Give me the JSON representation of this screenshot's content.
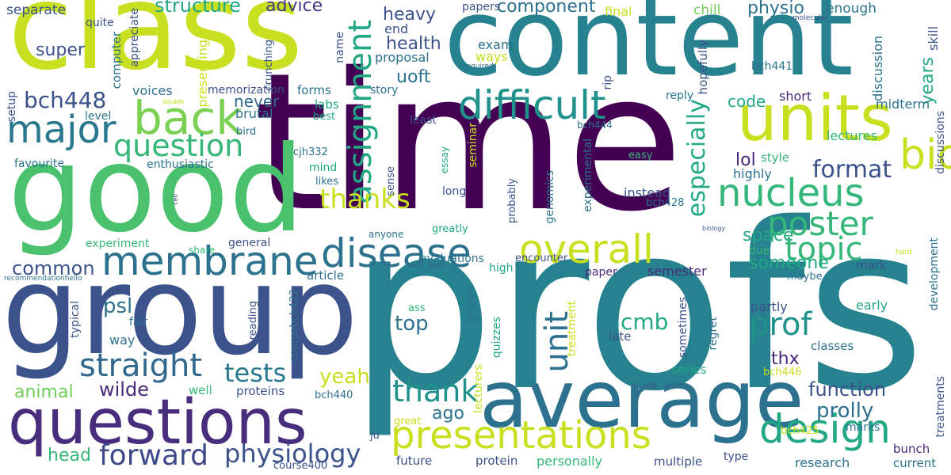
{
  "palette": {
    "dark_purple": "#440154",
    "indigo": "#482878",
    "blue": "#3e4989",
    "steel": "#31688e",
    "teal": "#26828e",
    "teal_green": "#1f9e89",
    "green": "#35b779",
    "light_green": "#6ece58",
    "lime": "#b5de2b",
    "yellow": "#fde725"
  },
  "words": [
    {
      "text": "time",
      "color": "#440154"
    },
    {
      "text": "profs",
      "color": "#26828e"
    },
    {
      "text": "class",
      "color": "#c8e020"
    },
    {
      "text": "content",
      "color": "#26828e"
    },
    {
      "text": "good",
      "color": "#4ac16d"
    },
    {
      "text": "group",
      "color": "#3b528b"
    },
    {
      "text": "average",
      "color": "#2c728e"
    },
    {
      "text": "questions",
      "color": "#472d7b"
    },
    {
      "text": "units",
      "color": "#c8e020"
    },
    {
      "text": "difficult",
      "color": "#20928c"
    },
    {
      "text": "major",
      "color": "#2a788e"
    },
    {
      "text": "back",
      "color": "#7ad151"
    },
    {
      "text": "membrane",
      "color": "#2c728e"
    },
    {
      "text": "disease",
      "color": "#2c728e"
    },
    {
      "text": "nucleus",
      "color": "#35b779"
    },
    {
      "text": "overall",
      "color": "#c8e020"
    },
    {
      "text": "biochemistry",
      "color": "#c8e020"
    },
    {
      "text": "presentations",
      "color": "#c8e020"
    },
    {
      "text": "design",
      "color": "#22a884"
    },
    {
      "text": "straight",
      "color": "#31688e"
    },
    {
      "text": "question",
      "color": "#35b779"
    },
    {
      "text": "forward",
      "color": "#3e4989"
    },
    {
      "text": "physiology",
      "color": "#3b528b"
    },
    {
      "text": "poster",
      "color": "#35b779"
    },
    {
      "text": "topic",
      "color": "#35b779"
    },
    {
      "text": "prof",
      "color": "#20928c"
    },
    {
      "text": "thank",
      "color": "#21918c"
    },
    {
      "text": "unit",
      "color": "#2c728e"
    },
    {
      "text": "assignment",
      "color": "#22a884"
    },
    {
      "text": "bch448",
      "color": "#3b528b"
    },
    {
      "text": "tests",
      "color": "#2a788e"
    },
    {
      "text": "thanks",
      "color": "#c8e020"
    },
    {
      "text": "especially",
      "color": "#22a884"
    },
    {
      "text": "format",
      "color": "#3b528b"
    },
    {
      "text": "wilde",
      "color": "#482878"
    },
    {
      "text": "yeah",
      "color": "#c8e020"
    },
    {
      "text": "function",
      "color": "#3b528b"
    },
    {
      "text": "prolly",
      "color": "#2c728e"
    },
    {
      "text": "cmb",
      "color": "#22a884"
    },
    {
      "text": "top",
      "color": "#2c728e"
    },
    {
      "text": "psl",
      "color": "#2c728e"
    },
    {
      "text": "common",
      "color": "#3b528b"
    },
    {
      "text": "structure",
      "color": "#22a884"
    },
    {
      "text": "advice",
      "color": "#443983"
    },
    {
      "text": "component",
      "color": "#2c728e"
    },
    {
      "text": "physio",
      "color": "#2c728e"
    },
    {
      "text": "heavy",
      "color": "#3b528b"
    },
    {
      "text": "health",
      "color": "#3b528b"
    },
    {
      "text": "uoft",
      "color": "#2c728e"
    },
    {
      "text": "super",
      "color": "#3b528b"
    },
    {
      "text": "space",
      "color": "#22a884"
    },
    {
      "text": "someone",
      "color": "#22a884"
    },
    {
      "text": "animal",
      "color": "#6ece58"
    },
    {
      "text": "head",
      "color": "#35b779"
    },
    {
      "text": "ago",
      "color": "#2c728e"
    },
    {
      "text": "thx",
      "color": "#482878"
    },
    {
      "text": "years",
      "color": "#22a884"
    },
    {
      "text": "lol",
      "color": "#482878"
    },
    {
      "text": "code",
      "color": "#22a884"
    },
    {
      "text": "never",
      "color": "#31688e"
    },
    {
      "text": "separate",
      "color": "#3b528b"
    },
    {
      "text": "chill",
      "color": "#6ece58"
    },
    {
      "text": "enough",
      "color": "#2c728e"
    },
    {
      "text": "skill",
      "color": "#3b528b"
    },
    {
      "text": "exam",
      "color": "#2c728e"
    },
    {
      "text": "ways",
      "color": "#c8e020"
    },
    {
      "text": "proposal",
      "color": "#2c728e"
    },
    {
      "text": "end",
      "color": "#3b528b"
    },
    {
      "text": "papers",
      "color": "#3b528b"
    },
    {
      "text": "final",
      "color": "#c8e020"
    },
    {
      "text": "bch441",
      "color": "#2c728e"
    },
    {
      "text": "lectures",
      "color": "#35b779"
    },
    {
      "text": "discussion",
      "color": "#2c728e"
    },
    {
      "text": "midterm",
      "color": "#2c728e"
    },
    {
      "text": "short",
      "color": "#482878"
    },
    {
      "text": "reply",
      "color": "#2c728e"
    },
    {
      "text": "hopefully",
      "color": "#3b528b"
    },
    {
      "text": "rip",
      "color": "#3b528b"
    },
    {
      "text": "bch444",
      "color": "#2c728e"
    },
    {
      "text": "forms",
      "color": "#2c728e"
    },
    {
      "text": "labs",
      "color": "#22a884"
    },
    {
      "text": "best",
      "color": "#22a884"
    },
    {
      "text": "story",
      "color": "#2c728e"
    },
    {
      "text": "memorization",
      "color": "#3b528b"
    },
    {
      "text": "brutal",
      "color": "#2c728e"
    },
    {
      "text": "bird",
      "color": "#2c728e"
    },
    {
      "text": "voices",
      "color": "#2c728e"
    },
    {
      "text": "presenting",
      "color": "#c8e020"
    },
    {
      "text": "appreciate",
      "color": "#3b528b"
    },
    {
      "text": "computer",
      "color": "#2c728e"
    },
    {
      "text": "quite",
      "color": "#3b528b"
    },
    {
      "text": "name",
      "color": "#3b528b"
    },
    {
      "text": "crunching",
      "color": "#3b528b"
    },
    {
      "text": "required",
      "color": "#2c728e"
    },
    {
      "text": "molecular",
      "color": "#3b528b"
    },
    {
      "text": "double",
      "color": "#c8e020"
    },
    {
      "text": "level",
      "color": "#2c728e"
    },
    {
      "text": "setup",
      "color": "#3b528b"
    },
    {
      "text": "favourite",
      "color": "#2c728e"
    },
    {
      "text": "enthusiastic",
      "color": "#2c728e"
    },
    {
      "text": "cjh332",
      "color": "#2c728e"
    },
    {
      "text": "mind",
      "color": "#22a884"
    },
    {
      "text": "likes",
      "color": "#2c728e"
    },
    {
      "text": "sense",
      "color": "#3b528b"
    },
    {
      "text": "essay",
      "color": "#22a884"
    },
    {
      "text": "seminar",
      "color": "#c8e020"
    },
    {
      "text": "least",
      "color": "#3b528b"
    },
    {
      "text": "long",
      "color": "#3b528b"
    },
    {
      "text": "greatly",
      "color": "#22a884"
    },
    {
      "text": "probably",
      "color": "#3b528b"
    },
    {
      "text": "genomics",
      "color": "#2c728e"
    },
    {
      "text": "experimental",
      "color": "#2c728e"
    },
    {
      "text": "easy",
      "color": "#35b779"
    },
    {
      "text": "instead",
      "color": "#3b528b"
    },
    {
      "text": "bch428",
      "color": "#2c728e"
    },
    {
      "text": "highly",
      "color": "#2c728e"
    },
    {
      "text": "style",
      "color": "#35b779"
    },
    {
      "text": "discussions",
      "color": "#3b528b"
    },
    {
      "text": "cell",
      "color": "#3b528b"
    },
    {
      "text": "experiment",
      "color": "#35b779"
    },
    {
      "text": "share",
      "color": "#35b779"
    },
    {
      "text": "general",
      "color": "#3b528b"
    },
    {
      "text": "anyone",
      "color": "#2c728e"
    },
    {
      "text": "evaluations",
      "color": "#2c728e"
    },
    {
      "text": "encounter",
      "color": "#3b528b"
    },
    {
      "text": "biology",
      "color": "#3b528b"
    },
    {
      "text": "due",
      "color": "#35b779"
    },
    {
      "text": "hard",
      "color": "#c8e020"
    },
    {
      "text": "recommendationhello",
      "color": "#2c728e"
    },
    {
      "text": "article",
      "color": "#2c728e"
    },
    {
      "text": "high",
      "color": "#22a884"
    },
    {
      "text": "paper",
      "color": "#482878"
    },
    {
      "text": "semester",
      "color": "#482878"
    },
    {
      "text": "mark",
      "color": "#3b528b"
    },
    {
      "text": "maybe",
      "color": "#2c728e"
    },
    {
      "text": "development",
      "color": "#2c728e"
    },
    {
      "text": "partly",
      "color": "#3b528b"
    },
    {
      "text": "early",
      "color": "#22a884"
    },
    {
      "text": "typical",
      "color": "#3b528b"
    },
    {
      "text": "fair",
      "color": "#2c728e"
    },
    {
      "text": "way",
      "color": "#2c728e"
    },
    {
      "text": "reading",
      "color": "#3b528b"
    },
    {
      "text": "coursebch422",
      "color": "#2c728e"
    },
    {
      "text": "groups",
      "color": "#2c728e"
    },
    {
      "text": "ass",
      "color": "#35b779"
    },
    {
      "text": "quizzes",
      "color": "#22a884"
    },
    {
      "text": "treatment",
      "color": "#c8e020"
    },
    {
      "text": "late",
      "color": "#3b528b"
    },
    {
      "text": "sometimes",
      "color": "#3b528b"
    },
    {
      "text": "regret",
      "color": "#2c728e"
    },
    {
      "text": "classes",
      "color": "#2c728e"
    },
    {
      "text": "series",
      "color": "#22a884"
    },
    {
      "text": "bch446",
      "color": "#c8e020"
    },
    {
      "text": "well",
      "color": "#35b779"
    },
    {
      "text": "proteins",
      "color": "#3b528b"
    },
    {
      "text": "bch440",
      "color": "#2c728e"
    },
    {
      "text": "lecturers",
      "color": "#c8e020"
    },
    {
      "text": "great",
      "color": "#c8e020"
    },
    {
      "text": "ju",
      "color": "#3b528b"
    },
    {
      "text": "bch425",
      "color": "#c8e020"
    },
    {
      "text": "marks",
      "color": "#2c728e"
    },
    {
      "text": "treatments",
      "color": "#3b528b"
    },
    {
      "text": "bunch",
      "color": "#482878"
    },
    {
      "text": "future",
      "color": "#3b528b"
    },
    {
      "text": "protein",
      "color": "#3b528b"
    },
    {
      "text": "personally",
      "color": "#35b779"
    },
    {
      "text": "multiple",
      "color": "#3b528b"
    },
    {
      "text": "type",
      "color": "#3b528b"
    },
    {
      "text": "research",
      "color": "#2c728e"
    },
    {
      "text": "current",
      "color": "#2c728e"
    },
    {
      "text": "course400",
      "color": "#3b528b"
    }
  ]
}
